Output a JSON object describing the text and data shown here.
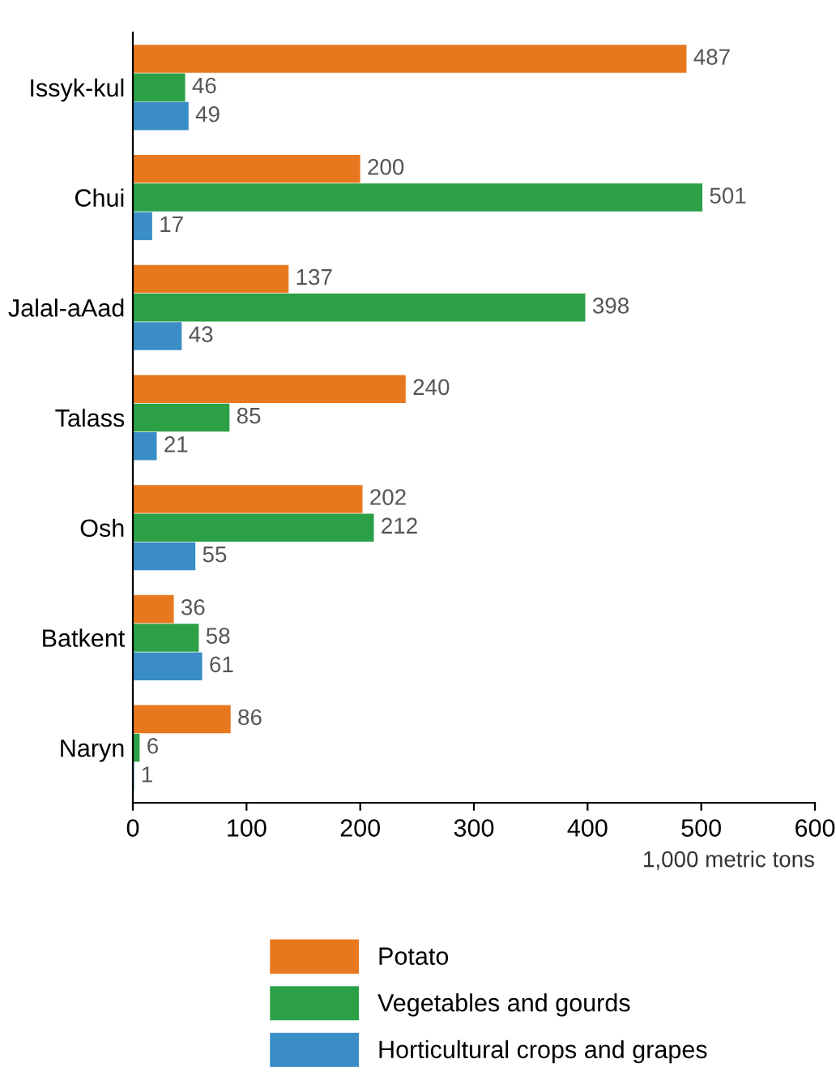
{
  "chart_data": {
    "type": "bar",
    "orientation": "horizontal",
    "categories": [
      "Issyk-kul",
      "Chui",
      "Jalal-aAad",
      "Talass",
      "Osh",
      "Batkent",
      "Naryn"
    ],
    "series": [
      {
        "name": "Potato",
        "color": "#e8781e",
        "values": [
          487,
          200,
          137,
          240,
          202,
          36,
          86
        ]
      },
      {
        "name": "Vegetables and gourds",
        "color": "#2ca046",
        "values": [
          46,
          501,
          398,
          85,
          212,
          58,
          6
        ]
      },
      {
        "name": "Horticultural crops and grapes",
        "color": "#3a8dc5",
        "values": [
          49,
          17,
          43,
          21,
          55,
          61,
          1
        ]
      }
    ],
    "xlim": [
      0,
      600
    ],
    "xticks": [
      0,
      100,
      200,
      300,
      400,
      500,
      600
    ],
    "xlabel": "1,000 metric tons",
    "data_labels": true,
    "grid": false,
    "legend": "bottom"
  }
}
